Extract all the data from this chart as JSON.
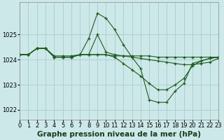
{
  "background_color": "#cde8e8",
  "grid_color": "#aacccc",
  "line_color": "#1a5c1a",
  "xlabel": "Graphe pression niveau de la mer (hPa)",
  "xlabel_fontsize": 7.5,
  "tick_fontsize": 6,
  "xlim": [
    0,
    23
  ],
  "ylim": [
    1021.6,
    1026.3
  ],
  "yticks": [
    1022,
    1023,
    1024,
    1025
  ],
  "xticks": [
    0,
    1,
    2,
    3,
    4,
    5,
    6,
    7,
    8,
    9,
    10,
    11,
    12,
    13,
    14,
    15,
    16,
    17,
    18,
    19,
    20,
    21,
    22,
    23
  ],
  "series": [
    [
      1024.2,
      1024.2,
      1024.45,
      1024.45,
      1024.1,
      1024.1,
      1024.1,
      1024.2,
      1024.85,
      1025.85,
      1025.65,
      1025.2,
      1024.6,
      1024.1,
      1023.65,
      1022.4,
      1022.3,
      1022.3,
      1022.75,
      1023.05,
      1023.85,
      1023.95,
      1024.05,
      1024.1
    ],
    [
      1024.2,
      1024.2,
      1024.45,
      1024.45,
      1024.15,
      1024.15,
      1024.15,
      1024.2,
      1024.2,
      1024.2,
      1024.2,
      1024.15,
      1024.15,
      1024.15,
      1024.15,
      1024.15,
      1024.1,
      1024.1,
      1024.1,
      1024.1,
      1024.1,
      1024.1,
      1024.1,
      1024.1
    ],
    [
      1024.2,
      1024.2,
      1024.45,
      1024.45,
      1024.1,
      1024.1,
      1024.1,
      1024.2,
      1024.2,
      1024.2,
      1024.2,
      1024.1,
      1023.85,
      1023.6,
      1023.35,
      1023.05,
      1022.8,
      1022.8,
      1023.0,
      1023.25,
      1023.75,
      1023.95,
      1024.05,
      1024.1
    ],
    [
      1024.2,
      1024.2,
      1024.45,
      1024.45,
      1024.1,
      1024.1,
      1024.1,
      1024.2,
      1024.2,
      1025.0,
      1024.3,
      1024.2,
      1024.15,
      1024.1,
      1024.05,
      1024.0,
      1023.95,
      1023.9,
      1023.85,
      1023.8,
      1023.8,
      1023.85,
      1023.9,
      1024.05
    ]
  ]
}
